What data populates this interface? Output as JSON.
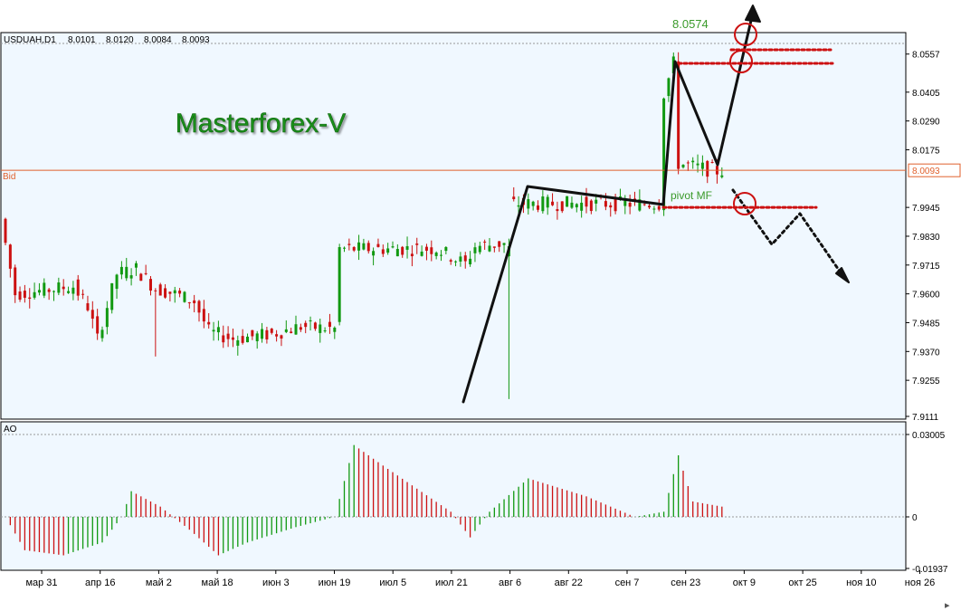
{
  "header": {
    "symbol": "USDUAH,D1",
    "open": "8.0101",
    "high": "8.0120",
    "low": "8.0084",
    "close": "8.0093"
  },
  "watermark": "Masterforex-V",
  "bid_label": "Bid",
  "bid_value": "8.0093",
  "annotations": {
    "target_label": "8.0574",
    "pivot_label": "pivot MF"
  },
  "indicator": {
    "name": "AO",
    "ticks": [
      "0.03005",
      "0",
      "-0.01937"
    ]
  },
  "colors": {
    "bull": "#119911",
    "bear": "#cc1111",
    "panel_bg": "#f0f8ff",
    "bid_line": "#e0602c",
    "watermark": "#1a8f1a",
    "dotted": "#cc1111"
  },
  "chart_data": {
    "type": "candlestick",
    "y_ticks": [
      "8.0557",
      "8.0405",
      "8.0290",
      "8.0175",
      "8.0093",
      "7.9945",
      "7.9830",
      "7.9715",
      "7.9600",
      "7.9485",
      "7.9370",
      "7.9255",
      "7.9111"
    ],
    "ylim": [
      7.9111,
      8.0603
    ],
    "x_ticks": [
      "мар 31",
      "апр 16",
      "май 2",
      "май 18",
      "июн 3",
      "июн 19",
      "июл 5",
      "июл 21",
      "авг 6",
      "авг 22",
      "сен 7",
      "сен 23",
      "окт 9",
      "окт 25",
      "ноя 10",
      "ноя 26"
    ],
    "price_anchors": [
      [
        0,
        7.99
      ],
      [
        3,
        7.96
      ],
      [
        15,
        7.963
      ],
      [
        18,
        7.955
      ],
      [
        20,
        7.942
      ],
      [
        24,
        7.968
      ],
      [
        28,
        7.97
      ],
      [
        32,
        7.962
      ],
      [
        36,
        7.96
      ],
      [
        40,
        7.957
      ],
      [
        43,
        7.945
      ],
      [
        48,
        7.942
      ],
      [
        56,
        7.944
      ],
      [
        62,
        7.947
      ],
      [
        69,
        7.946
      ],
      [
        70,
        7.978
      ],
      [
        80,
        7.978
      ],
      [
        90,
        7.978
      ],
      [
        94,
        7.974
      ],
      [
        96,
        7.972
      ],
      [
        98,
        7.979
      ],
      [
        104,
        7.98
      ],
      [
        105,
        7.996
      ],
      [
        116,
        7.996
      ],
      [
        130,
        7.996
      ],
      [
        136,
        7.996
      ],
      [
        137,
        8.04
      ],
      [
        139,
        8.052
      ],
      [
        140,
        8.012
      ],
      [
        148,
        8.009
      ]
    ],
    "ao_anchors": [
      [
        0,
        0.0
      ],
      [
        4,
        -0.013
      ],
      [
        12,
        -0.015
      ],
      [
        20,
        -0.01
      ],
      [
        24,
        0.0
      ],
      [
        26,
        0.01
      ],
      [
        32,
        0.004
      ],
      [
        38,
        -0.005
      ],
      [
        44,
        -0.015
      ],
      [
        50,
        -0.01
      ],
      [
        60,
        -0.004
      ],
      [
        68,
        0.0
      ],
      [
        72,
        0.028
      ],
      [
        78,
        0.02
      ],
      [
        92,
        0.002
      ],
      [
        96,
        -0.008
      ],
      [
        100,
        0.002
      ],
      [
        108,
        0.015
      ],
      [
        120,
        0.008
      ],
      [
        130,
        0.0
      ],
      [
        136,
        0.002
      ],
      [
        139,
        0.024
      ],
      [
        142,
        0.006
      ],
      [
        148,
        0.004
      ]
    ],
    "target_level": 8.0574,
    "upper_level": 8.052,
    "pivot_level": 7.9945,
    "bid_level": 8.0093
  }
}
